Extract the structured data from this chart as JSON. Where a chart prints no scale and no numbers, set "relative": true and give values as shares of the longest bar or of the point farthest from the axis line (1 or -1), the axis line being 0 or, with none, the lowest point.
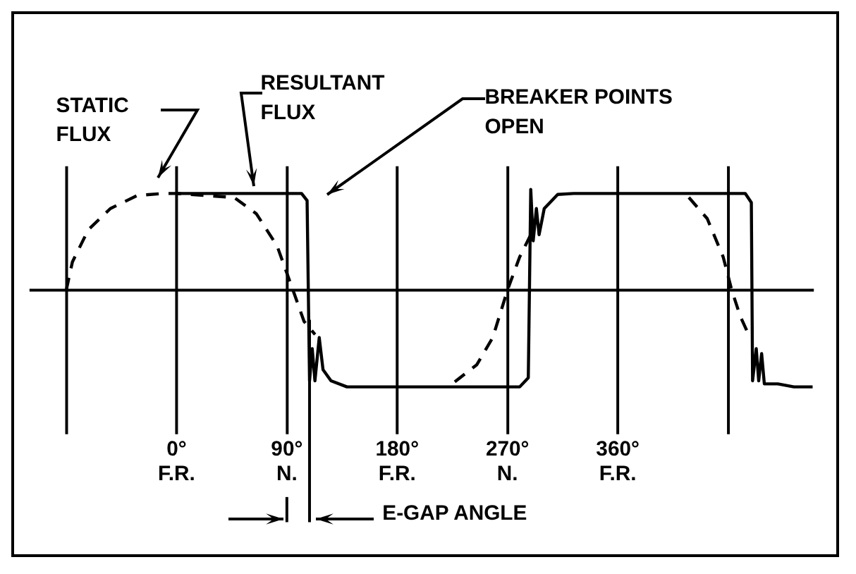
{
  "chart_data": {
    "type": "line",
    "relative": true,
    "legend": false,
    "grid": "x",
    "marker": "none",
    "xlim": [
      -120,
      520
    ],
    "xticks": [
      {
        "value": -90,
        "label": null
      },
      {
        "value": 0,
        "label": "0°\nF.R."
      },
      {
        "value": 90,
        "label": "90°\nN."
      },
      {
        "value": 180,
        "label": "180°\nF.R."
      },
      {
        "value": 270,
        "label": "270°\nN."
      },
      {
        "value": 360,
        "label": "360°\nF.R."
      },
      {
        "value": 450,
        "label": null
      }
    ],
    "series": [
      {
        "name": "STATIC\nFLUX",
        "color": "#000000",
        "line_style": "dashed",
        "x": [
          -90,
          -85,
          -72,
          -54,
          -32,
          -10,
          0,
          47,
          65,
          82,
          95,
          104,
          113,
          170,
          227,
          245,
          258,
          270,
          280,
          291,
          350,
          418,
          433,
          446,
          453,
          460,
          466
        ],
        "values": [
          0,
          0.28,
          0.6,
          0.81,
          0.94,
          0.96,
          0.96,
          0.92,
          0.76,
          0.44,
          0,
          -0.31,
          -0.44,
          null,
          -0.91,
          -0.74,
          -0.47,
          0,
          0.33,
          0.6,
          null,
          0.92,
          0.71,
          0.33,
          0,
          -0.26,
          -0.42
        ]
      },
      {
        "name": "RESULTANT\nFLUX",
        "color": "#000000",
        "line_style": "solid",
        "x": [
          0,
          102,
          106.5,
          108.5,
          110.7,
          112.9,
          116.4,
          119.5,
          126,
          139,
          280,
          287,
          289,
          291,
          293.6,
          295.8,
          300,
          311,
          324,
          464,
          469,
          470,
          473,
          475,
          477.4,
          479.6,
          490.6,
          503.7,
          519
        ],
        "values": [
          0.96,
          0.96,
          0.89,
          -0.9,
          -0.58,
          -0.9,
          -0.47,
          -0.79,
          -0.9,
          -0.96,
          -0.96,
          -0.87,
          1,
          0.49,
          0.81,
          0.55,
          0.81,
          0.95,
          0.96,
          0.96,
          0.87,
          -0.9,
          -0.58,
          -0.9,
          -0.63,
          -0.93,
          -0.93,
          -0.96,
          -0.96
        ]
      }
    ],
    "annotations": [
      "BREAKER POINTS\nOPEN",
      "E-GAP ANGLE"
    ],
    "ref_lines": [
      {
        "axis": "x",
        "value": 108.5
      }
    ]
  }
}
